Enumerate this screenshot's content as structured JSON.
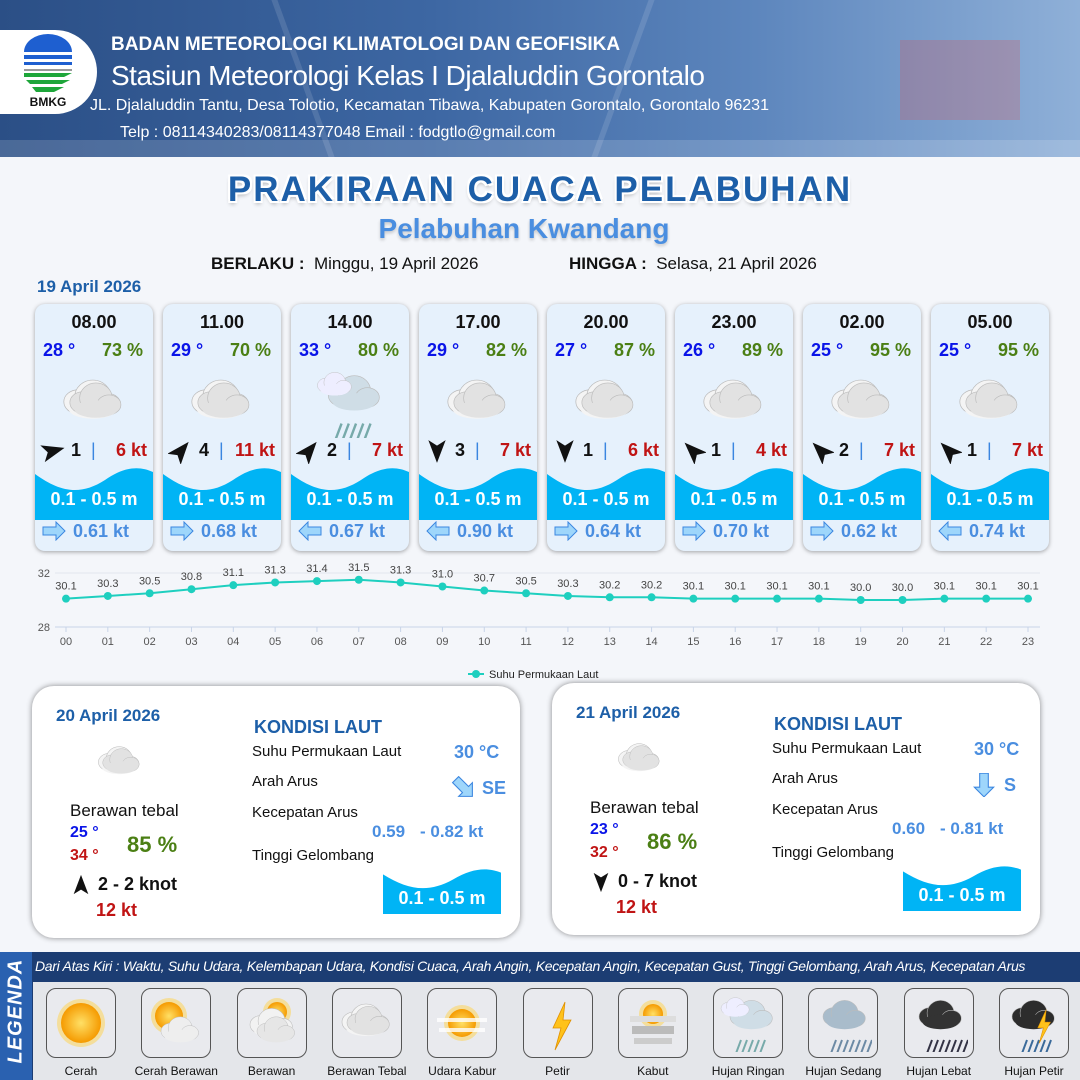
{
  "header": {
    "logo_text": "BMKG",
    "agency": "BADAN METEOROLOGI KLIMATOLOGI DAN GEOFISIKA",
    "station": "Stasiun Meteorologi Kelas I Djalaluddin Gorontalo",
    "address": "JL. Djalaluddin Tantu, Desa Tolotio, Kecamatan Tibawa, Kabupaten Gorontalo, Gorontalo 96231",
    "contact": "Telp : 08114340283/08114377048 Email : fodgtlo@gmail.com"
  },
  "title": "PRAKIRAAN CUACA PELABUHAN",
  "subtitle": "Pelabuhan Kwandang",
  "validity": {
    "from_label": "BERLAKU :",
    "from": "Minggu, 19 April 2026",
    "to_label": "HINGGA :",
    "to": "Selasa, 21 April 2026"
  },
  "day0_date": "19 April 2026",
  "hourly": [
    {
      "time": "08.00",
      "temp": "28 °",
      "rh": "73 %",
      "weather": "berawan-tebal",
      "wind_dir_deg": 75,
      "wind": "1",
      "gust": "6 kt",
      "wave": "0.1 - 0.5 m",
      "current_dir": "right",
      "current": "0.61 kt"
    },
    {
      "time": "11.00",
      "temp": "29 °",
      "rh": "70 %",
      "weather": "berawan-tebal",
      "wind_dir_deg": 40,
      "wind": "4",
      "gust": "11 kt",
      "wave": "0.1 - 0.5 m",
      "current_dir": "right",
      "current": "0.68 kt"
    },
    {
      "time": "14.00",
      "temp": "33 °",
      "rh": "80 %",
      "weather": "hujan-ringan",
      "wind_dir_deg": 40,
      "wind": "2",
      "gust": "7 kt",
      "wave": "0.1 - 0.5 m",
      "current_dir": "left",
      "current": "0.67 kt"
    },
    {
      "time": "17.00",
      "temp": "29 °",
      "rh": "82 %",
      "weather": "berawan-tebal",
      "wind_dir_deg": 180,
      "wind": "3",
      "gust": "7 kt",
      "wave": "0.1 - 0.5 m",
      "current_dir": "left",
      "current": "0.90 kt"
    },
    {
      "time": "20.00",
      "temp": "27 °",
      "rh": "87 %",
      "weather": "berawan-tebal",
      "wind_dir_deg": 180,
      "wind": "1",
      "gust": "6 kt",
      "wave": "0.1 - 0.5 m",
      "current_dir": "right",
      "current": "0.64 kt"
    },
    {
      "time": "23.00",
      "temp": "26 °",
      "rh": "89 %",
      "weather": "berawan-tebal",
      "wind_dir_deg": 315,
      "wind": "1",
      "gust": "4 kt",
      "wave": "0.1 - 0.5 m",
      "current_dir": "right",
      "current": "0.70 kt"
    },
    {
      "time": "02.00",
      "temp": "25 °",
      "rh": "95 %",
      "weather": "berawan-tebal",
      "wind_dir_deg": 315,
      "wind": "2",
      "gust": "7 kt",
      "wave": "0.1 - 0.5 m",
      "current_dir": "right",
      "current": "0.62 kt"
    },
    {
      "time": "05.00",
      "temp": "25 °",
      "rh": "95 %",
      "weather": "berawan-tebal",
      "wind_dir_deg": 315,
      "wind": "1",
      "gust": "7 kt",
      "wave": "0.1 - 0.5 m",
      "current_dir": "left",
      "current": "0.74 kt"
    }
  ],
  "chart_data": {
    "type": "line",
    "x": [
      "00",
      "01",
      "02",
      "03",
      "04",
      "05",
      "06",
      "07",
      "08",
      "09",
      "10",
      "11",
      "12",
      "13",
      "14",
      "15",
      "16",
      "17",
      "18",
      "19",
      "20",
      "21",
      "22",
      "23"
    ],
    "series": [
      {
        "name": "Suhu Permukaan Laut",
        "values": [
          30.1,
          30.3,
          30.5,
          30.8,
          31.1,
          31.3,
          31.4,
          31.5,
          31.3,
          31.0,
          30.7,
          30.5,
          30.3,
          30.2,
          30.2,
          30.1,
          30.1,
          30.1,
          30.1,
          30.0,
          30.0,
          30.1,
          30.1,
          30.1
        ],
        "color": "#1ecfbf"
      }
    ],
    "yticks": [
      "28",
      "32"
    ],
    "ylim": [
      28,
      32
    ],
    "grid": true,
    "data_labels": true,
    "legend": "bottom"
  },
  "days": [
    {
      "date": "20 April 2026",
      "weather": "berawan-tebal",
      "condition": "Berawan tebal",
      "tmin": "25 °",
      "tmax": "34 °",
      "rh": "85 %",
      "wind_dir_deg": 0,
      "wind": "2  - 2 knot",
      "gust": "12 kt",
      "sea_title": "KONDISI LAUT",
      "sst_label": "Suhu Permukaan Laut",
      "sst": "30 °C",
      "cur_dir_label": "Arah Arus",
      "cur_dir": "SE",
      "cur_dir_deg": 135,
      "cur_spd_label": "Kecepatan Arus",
      "cur_min": "0.59",
      "cur_max": "- 0.82 kt",
      "wave_label": "Tinggi Gelombang",
      "wave": "0.1 - 0.5 m"
    },
    {
      "date": "21 April 2026",
      "weather": "berawan-tebal",
      "condition": "Berawan tebal",
      "tmin": "23 °",
      "tmax": "32 °",
      "rh": "86 %",
      "wind_dir_deg": 180,
      "wind": "0  - 7 knot",
      "gust": "12 kt",
      "sea_title": "KONDISI LAUT",
      "sst_label": "Suhu Permukaan Laut",
      "sst": "30 °C",
      "cur_dir_label": "Arah Arus",
      "cur_dir": "S",
      "cur_dir_deg": 180,
      "cur_spd_label": "Kecepatan Arus",
      "cur_min": "0.60",
      "cur_max": "- 0.81 kt",
      "wave_label": "Tinggi Gelombang",
      "wave": "0.1 - 0.5 m"
    }
  ],
  "legend": {
    "tag": "LEGENDA",
    "description": "Dari Atas Kiri : Waktu, Suhu Udara, Kelembapan Udara, Kondisi Cuaca, Arah Angin, Kecepatan Angin, Kecepatan Gust, Tinggi Gelombang, Arah Arus, Kecepatan Arus",
    "items": [
      {
        "icon": "cerah",
        "label": "Cerah"
      },
      {
        "icon": "cerah-berawan",
        "label": "Cerah Berawan"
      },
      {
        "icon": "berawan",
        "label": "Berawan"
      },
      {
        "icon": "berawan-tebal",
        "label": "Berawan Tebal"
      },
      {
        "icon": "udara-kabur",
        "label": "Udara Kabur"
      },
      {
        "icon": "petir",
        "label": "Petir"
      },
      {
        "icon": "kabut",
        "label": "Kabut"
      },
      {
        "icon": "hujan-ringan",
        "label": "Hujan Ringan"
      },
      {
        "icon": "hujan-sedang",
        "label": "Hujan Sedang"
      },
      {
        "icon": "hujan-lebat",
        "label": "Hujan Lebat"
      },
      {
        "icon": "hujan-petir",
        "label": "Hujan Petir"
      }
    ]
  },
  "colors": {
    "brand_blue": "#1d5fa8",
    "temp": "#0a14e8",
    "humidity": "#4b7f14",
    "gust": "#c01414",
    "wave": "#00b4f5",
    "current": "#4a8ee0"
  }
}
